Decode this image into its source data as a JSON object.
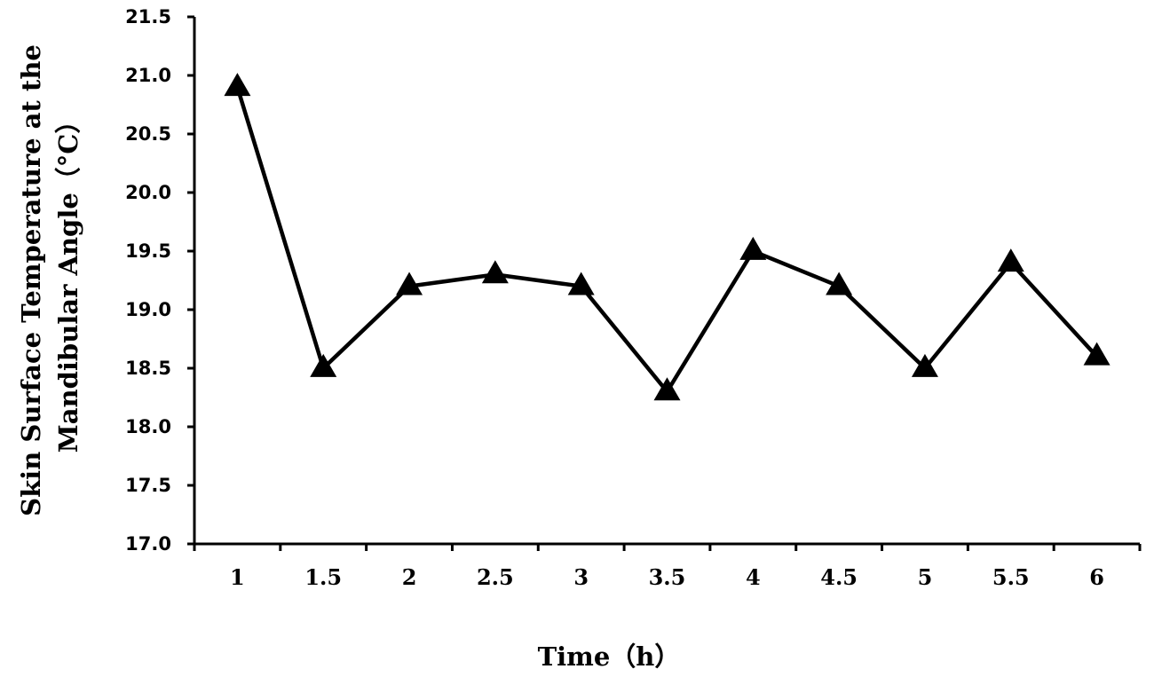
{
  "chart_data": {
    "type": "line",
    "title": "",
    "xlabel": "Time（h）",
    "ylabel_lines": [
      "Skin Surface Temperature at the",
      "Mandibular Angle（°C）"
    ],
    "x": [
      "1",
      "1.5",
      "2",
      "2.5",
      "3",
      "3.5",
      "4",
      "4.5",
      "5",
      "5.5",
      "6"
    ],
    "series": [
      {
        "values": [
          20.9,
          18.5,
          19.2,
          19.3,
          19.2,
          18.3,
          19.5,
          19.2,
          18.5,
          19.4,
          18.6
        ],
        "marker": "triangle",
        "color": "#000000"
      }
    ],
    "ylim": [
      17.0,
      21.5
    ],
    "yticks": [
      "17.0",
      "17.5",
      "18.0",
      "18.5",
      "19.0",
      "19.5",
      "20.0",
      "20.5",
      "21.0",
      "21.5"
    ],
    "grid": false,
    "legend": "none"
  }
}
